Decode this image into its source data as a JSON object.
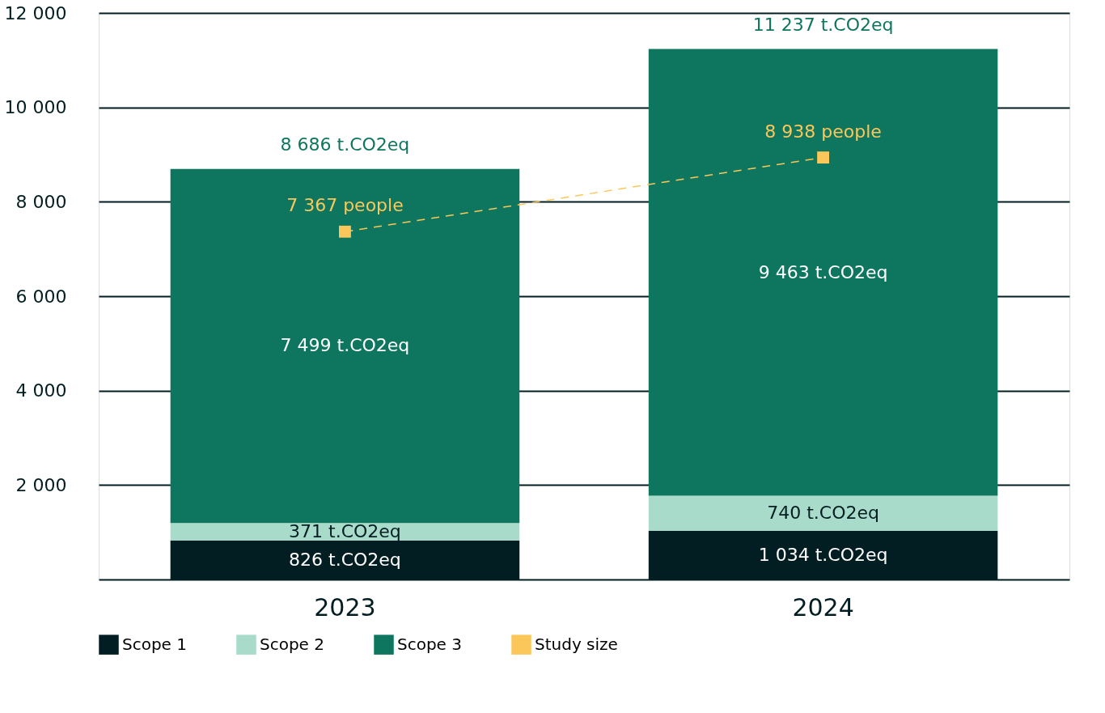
{
  "chart_data": {
    "type": "bar",
    "stacked": true,
    "categories": [
      "2023",
      "2024"
    ],
    "series": [
      {
        "name": "Scope 1",
        "color": "#031e22",
        "values": [
          826,
          1034
        ],
        "value_labels": [
          "826 t.CO2eq",
          "1 034 t.CO2eq"
        ]
      },
      {
        "name": "Scope 2",
        "color": "#a8dbc9",
        "values": [
          371,
          740
        ],
        "value_labels": [
          "371 t.CO2eq",
          "740 t.CO2eq"
        ]
      },
      {
        "name": "Scope 3",
        "color": "#0e765f",
        "values": [
          7499,
          9463
        ],
        "value_labels": [
          "7 499 t.CO2eq",
          "9 463 t.CO2eq"
        ]
      },
      {
        "name": "Study size",
        "type": "line",
        "color": "#fbc75a",
        "values": [
          7367,
          8938
        ],
        "value_labels": [
          "7 367 people",
          "8 938 people"
        ]
      }
    ],
    "totals": [
      "8 686 t.CO2eq",
      "11 237 t.CO2eq"
    ],
    "ylim": [
      0,
      12000
    ],
    "yticks": [
      {
        "value": 0,
        "label": null
      },
      {
        "value": 2000,
        "label": "2 000"
      },
      {
        "value": 4000,
        "label": "4 000"
      },
      {
        "value": 6000,
        "label": "6 000"
      },
      {
        "value": 8000,
        "label": "8 000"
      },
      {
        "value": 10000,
        "label": "10 000"
      },
      {
        "value": 12000,
        "label": "12 000"
      }
    ],
    "grid": "y",
    "legend": "bottom",
    "marker": "square",
    "line_style": "dashed"
  }
}
